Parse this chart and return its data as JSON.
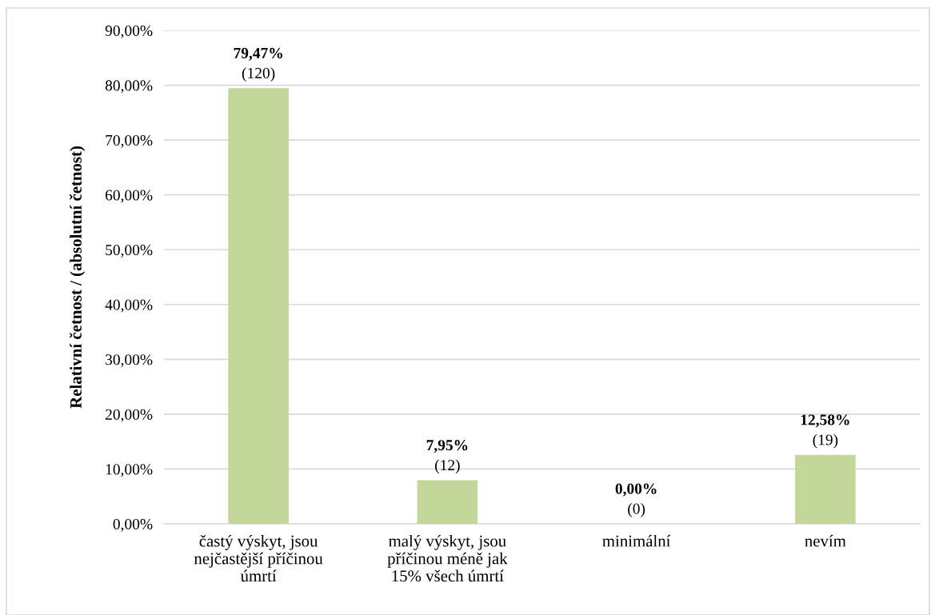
{
  "chart_data": {
    "type": "bar",
    "ylabel": "Relativní četnost / (absolutní četnost)",
    "categories": [
      "častý výskyt, jsou\nnejčastější příčinou\númrtí",
      "malý výskyt, jsou\npříčinou méně jak\n15% všech úmrtí",
      "minimální",
      "nevím"
    ],
    "values": [
      79.47,
      7.95,
      0,
      12.58
    ],
    "value_labels": [
      "79,47%\n(120)",
      "7,95%\n(12)",
      "0,00%\n(0)",
      "12,58%\n(19)"
    ],
    "color": "#c4d79b",
    "ylim": [
      0,
      90
    ],
    "yticks": [
      {
        "value": 0,
        "label": "0,00%"
      },
      {
        "value": 10,
        "label": "10,00%"
      },
      {
        "value": 20,
        "label": "20,00%"
      },
      {
        "value": 30,
        "label": "30,00%"
      },
      {
        "value": 40,
        "label": "40,00%"
      },
      {
        "value": 50,
        "label": "50,00%"
      },
      {
        "value": 60,
        "label": "60,00%"
      },
      {
        "value": 70,
        "label": "70,00%"
      },
      {
        "value": 80,
        "label": "80,00%"
      },
      {
        "value": 90,
        "label": "90,00%"
      }
    ],
    "grid": "y"
  }
}
